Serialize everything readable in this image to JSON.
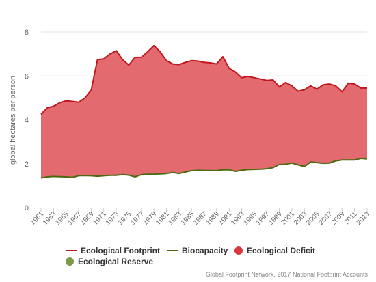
{
  "chart_data": {
    "type": "area",
    "ylabel": "global hectares per person",
    "xlabel": "",
    "ylim": [
      0,
      8
    ],
    "yticks": [
      0,
      2,
      4,
      6,
      8
    ],
    "x_ticklabels": [
      "1961",
      "1963",
      "1965",
      "1967",
      "1969",
      "1971",
      "1973",
      "1975",
      "1977",
      "1979",
      "1981",
      "1983",
      "1985",
      "1987",
      "1989",
      "1991",
      "1993",
      "1995",
      "1997",
      "1999",
      "2001",
      "2003",
      "2005",
      "2007",
      "2009",
      "2011",
      "2013"
    ],
    "x": [
      1961,
      1962,
      1963,
      1964,
      1965,
      1966,
      1967,
      1968,
      1969,
      1970,
      1971,
      1972,
      1973,
      1974,
      1975,
      1976,
      1977,
      1978,
      1979,
      1980,
      1981,
      1982,
      1983,
      1984,
      1985,
      1986,
      1987,
      1988,
      1989,
      1990,
      1991,
      1992,
      1993,
      1994,
      1995,
      1996,
      1997,
      1998,
      1999,
      2000,
      2001,
      2002,
      2003,
      2004,
      2005,
      2006,
      2007,
      2008,
      2009,
      2010,
      2011,
      2012,
      2013
    ],
    "series": [
      {
        "name": "Ecological Footprint",
        "color": "#c0161e",
        "values": [
          4.25,
          4.55,
          4.62,
          4.78,
          4.87,
          4.84,
          4.8,
          5.0,
          5.35,
          6.75,
          6.78,
          7.0,
          7.15,
          6.75,
          6.5,
          6.85,
          6.85,
          7.1,
          7.38,
          7.1,
          6.7,
          6.55,
          6.52,
          6.62,
          6.7,
          6.68,
          6.62,
          6.6,
          6.55,
          6.88,
          6.35,
          6.18,
          5.92,
          5.98,
          5.92,
          5.86,
          5.8,
          5.82,
          5.5,
          5.7,
          5.55,
          5.3,
          5.37,
          5.55,
          5.4,
          5.6,
          5.63,
          5.55,
          5.28,
          5.67,
          5.63,
          5.45,
          5.45
        ]
      },
      {
        "name": "Biocapacity",
        "color": "#4a6a10",
        "values": [
          1.35,
          1.4,
          1.42,
          1.41,
          1.4,
          1.38,
          1.45,
          1.46,
          1.45,
          1.43,
          1.45,
          1.47,
          1.47,
          1.5,
          1.48,
          1.4,
          1.5,
          1.52,
          1.52,
          1.53,
          1.55,
          1.6,
          1.55,
          1.62,
          1.68,
          1.7,
          1.69,
          1.69,
          1.68,
          1.72,
          1.72,
          1.65,
          1.7,
          1.73,
          1.74,
          1.75,
          1.77,
          1.82,
          1.97,
          1.97,
          2.03,
          1.95,
          1.87,
          2.08,
          2.05,
          2.02,
          2.03,
          2.13,
          2.17,
          2.17,
          2.17,
          2.24,
          2.22
        ]
      }
    ],
    "fills": [
      {
        "name": "Ecological Deficit",
        "color": "#e05a5f"
      },
      {
        "name": "Ecological Reserve",
        "color": "#7a9a45"
      }
    ],
    "grid": true,
    "legend_placement": "bottom"
  },
  "credits": "Global Footprint Network, 2017 National Footprint Accounts"
}
